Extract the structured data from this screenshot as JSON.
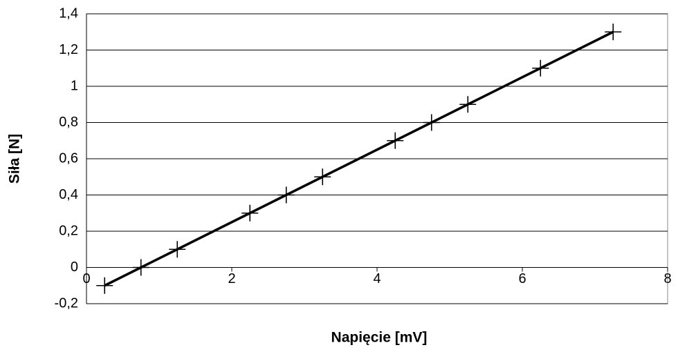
{
  "chart_data": {
    "type": "line",
    "marker": "+",
    "xlabel": "Napięcie [mV]",
    "ylabel": "Siła [N]",
    "x": [
      0.25,
      0.75,
      1.25,
      2.25,
      2.75,
      3.25,
      4.25,
      4.75,
      5.25,
      6.25,
      7.25
    ],
    "series": [
      {
        "color": "#000000",
        "values": [
          -0.1,
          0,
          0.1,
          0.3,
          0.4,
          0.5,
          0.7,
          0.8,
          0.9,
          1.1,
          1.3
        ]
      }
    ],
    "xlim": [
      0,
      8
    ],
    "xticks": [
      0,
      2,
      4,
      6,
      8
    ],
    "ylim": [
      -0.2,
      1.4
    ],
    "yticks": [
      {
        "value": -0.2,
        "label": "-0,2"
      },
      0,
      {
        "value": 0.2,
        "label": "0,2"
      },
      {
        "value": 0.4,
        "label": "0,4"
      },
      {
        "value": 0.6,
        "label": "0,6"
      },
      {
        "value": 0.8,
        "label": "0,8"
      },
      1,
      {
        "value": 1.2,
        "label": "1,2"
      },
      {
        "value": 1.4,
        "label": "1,4"
      }
    ],
    "grid": true
  }
}
